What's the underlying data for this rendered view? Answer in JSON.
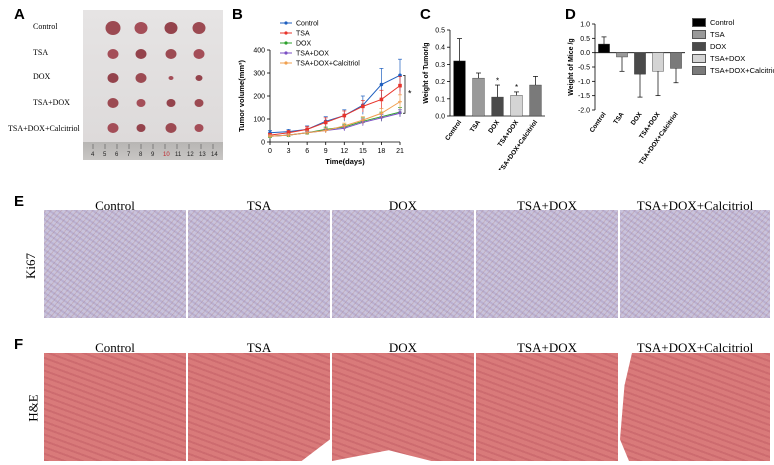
{
  "panels": {
    "A": {
      "letter": "A",
      "groups": [
        "Control",
        "TSA",
        "DOX",
        "TSA+DOX",
        "TSA+DOX+Calcitriol"
      ],
      "ruler_ticks": [
        "4",
        "5",
        "6",
        "7",
        "8",
        "9",
        "10",
        "11",
        "12",
        "13",
        "14"
      ]
    },
    "B": {
      "letter": "B"
    },
    "C": {
      "letter": "C"
    },
    "D": {
      "letter": "D"
    },
    "E": {
      "letter": "E",
      "row_label": "Ki67",
      "columns": [
        "Control",
        "TSA",
        "DOX",
        "TSA+DOX",
        "TSA+DOX+Calcitriol"
      ]
    },
    "F": {
      "letter": "F",
      "row_label": "H&E",
      "columns": [
        "Control",
        "TSA",
        "DOX",
        "TSA+DOX",
        "TSA+DOX+Calcitriol"
      ]
    }
  },
  "colors": {
    "control": "#1f5fbf",
    "tsa": "#e8342b",
    "dox": "#2ca02c",
    "tsa_dox": "#7b4fc4",
    "calcitriol": "#f0a050",
    "bar_control": "#000000",
    "bar_tsa": "#9a9a9a",
    "bar_dox": "#4a4a4a",
    "bar_tsa_dox": "#d4d4d4",
    "bar_calcitriol": "#7a7a7a",
    "ki67_bg": "#c9c3dc",
    "he_bg": "#d97a7a"
  },
  "chart_data": [
    {
      "type": "line",
      "ylabel": "Tumor volume(mm³)",
      "xlabel": "Time(days)",
      "x": [
        0,
        3,
        6,
        9,
        12,
        15,
        18,
        21
      ],
      "ylim": [
        0,
        400
      ],
      "yticks": [
        "0",
        "100",
        "200",
        "300",
        "400"
      ],
      "xticks": [
        "0",
        "3",
        "6",
        "9",
        "12",
        "15",
        "18",
        "21"
      ],
      "annotation": "*",
      "series": [
        {
          "name": "Control",
          "values": [
            40,
            45,
            55,
            90,
            115,
            160,
            250,
            290
          ],
          "err": [
            10,
            10,
            15,
            20,
            25,
            40,
            70,
            70
          ]
        },
        {
          "name": "TSA",
          "values": [
            30,
            40,
            55,
            85,
            115,
            155,
            185,
            245
          ],
          "err": [
            8,
            10,
            12,
            20,
            20,
            25,
            40,
            40
          ]
        },
        {
          "name": "DOX",
          "values": [
            25,
            30,
            40,
            55,
            65,
            90,
            110,
            130
          ],
          "err": [
            5,
            5,
            8,
            10,
            12,
            15,
            20,
            20
          ]
        },
        {
          "name": "TSA+DOX",
          "values": [
            25,
            30,
            40,
            50,
            60,
            85,
            105,
            125
          ],
          "err": [
            5,
            5,
            8,
            10,
            12,
            15,
            15,
            15
          ]
        },
        {
          "name": "TSA+DOX+Calcitriol",
          "values": [
            25,
            30,
            40,
            50,
            70,
            95,
            125,
            175
          ],
          "err": [
            5,
            5,
            8,
            10,
            12,
            15,
            20,
            30
          ]
        }
      ],
      "legend": "top-left"
    },
    {
      "type": "bar",
      "ylabel": "Weight of Tumor/g",
      "categories": [
        "Control",
        "TSA",
        "DOX",
        "TSA+DOX",
        "TSA+DOX+Calcitriol"
      ],
      "values": [
        0.32,
        0.22,
        0.11,
        0.12,
        0.18
      ],
      "err": [
        0.13,
        0.03,
        0.07,
        0.02,
        0.05
      ],
      "ylim": [
        0,
        0.5
      ],
      "yticks": [
        "0.0",
        "0.1",
        "0.2",
        "0.3",
        "0.4",
        "0.5"
      ],
      "annotations": [
        "*",
        "*"
      ]
    },
    {
      "type": "bar",
      "ylabel": "Weight of Mice /g",
      "categories": [
        "Control",
        "TSA",
        "DOX",
        "TSA+DOX",
        "TSA+DOX+Calcitriol"
      ],
      "values": [
        0.3,
        -0.15,
        -0.75,
        -0.65,
        -0.55
      ],
      "err": [
        0.25,
        0.5,
        0.8,
        0.85,
        0.5
      ],
      "ylim": [
        -2.0,
        1.0
      ],
      "yticks": [
        "1.0",
        "0.5",
        "0.0",
        "-0.5",
        "-1.0",
        "-1.5",
        "-2.0"
      ],
      "legend_labels": [
        "Control",
        "TSA",
        "DOX",
        "TSA+DOX",
        "TSA+DOX+Calcitriol"
      ],
      "legend": "right"
    }
  ]
}
